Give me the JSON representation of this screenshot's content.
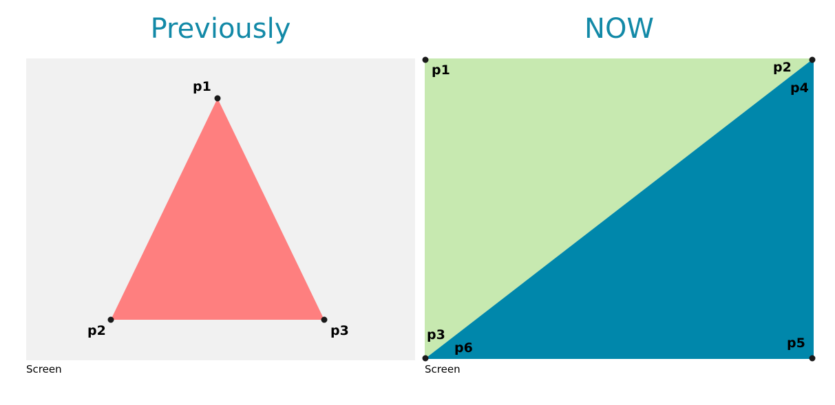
{
  "left_panel": {
    "title": "Previously",
    "caption": "Screen",
    "background_color": "#f1f1f1",
    "triangle_color": "#fe7f7f",
    "points": {
      "p1": "p1",
      "p2": "p2",
      "p3": "p3"
    }
  },
  "right_panel": {
    "title": "NOW",
    "caption": "Screen",
    "upper_triangle_color": "#c7e9b0",
    "lower_triangle_color": "#0087ab",
    "points": {
      "p1": "p1",
      "p2": "p2",
      "p3": "p3",
      "p4": "p4",
      "p5": "p5",
      "p6": "p6"
    }
  },
  "colors": {
    "title": "#1289a7",
    "vertex_dot": "#1a1a1a"
  }
}
